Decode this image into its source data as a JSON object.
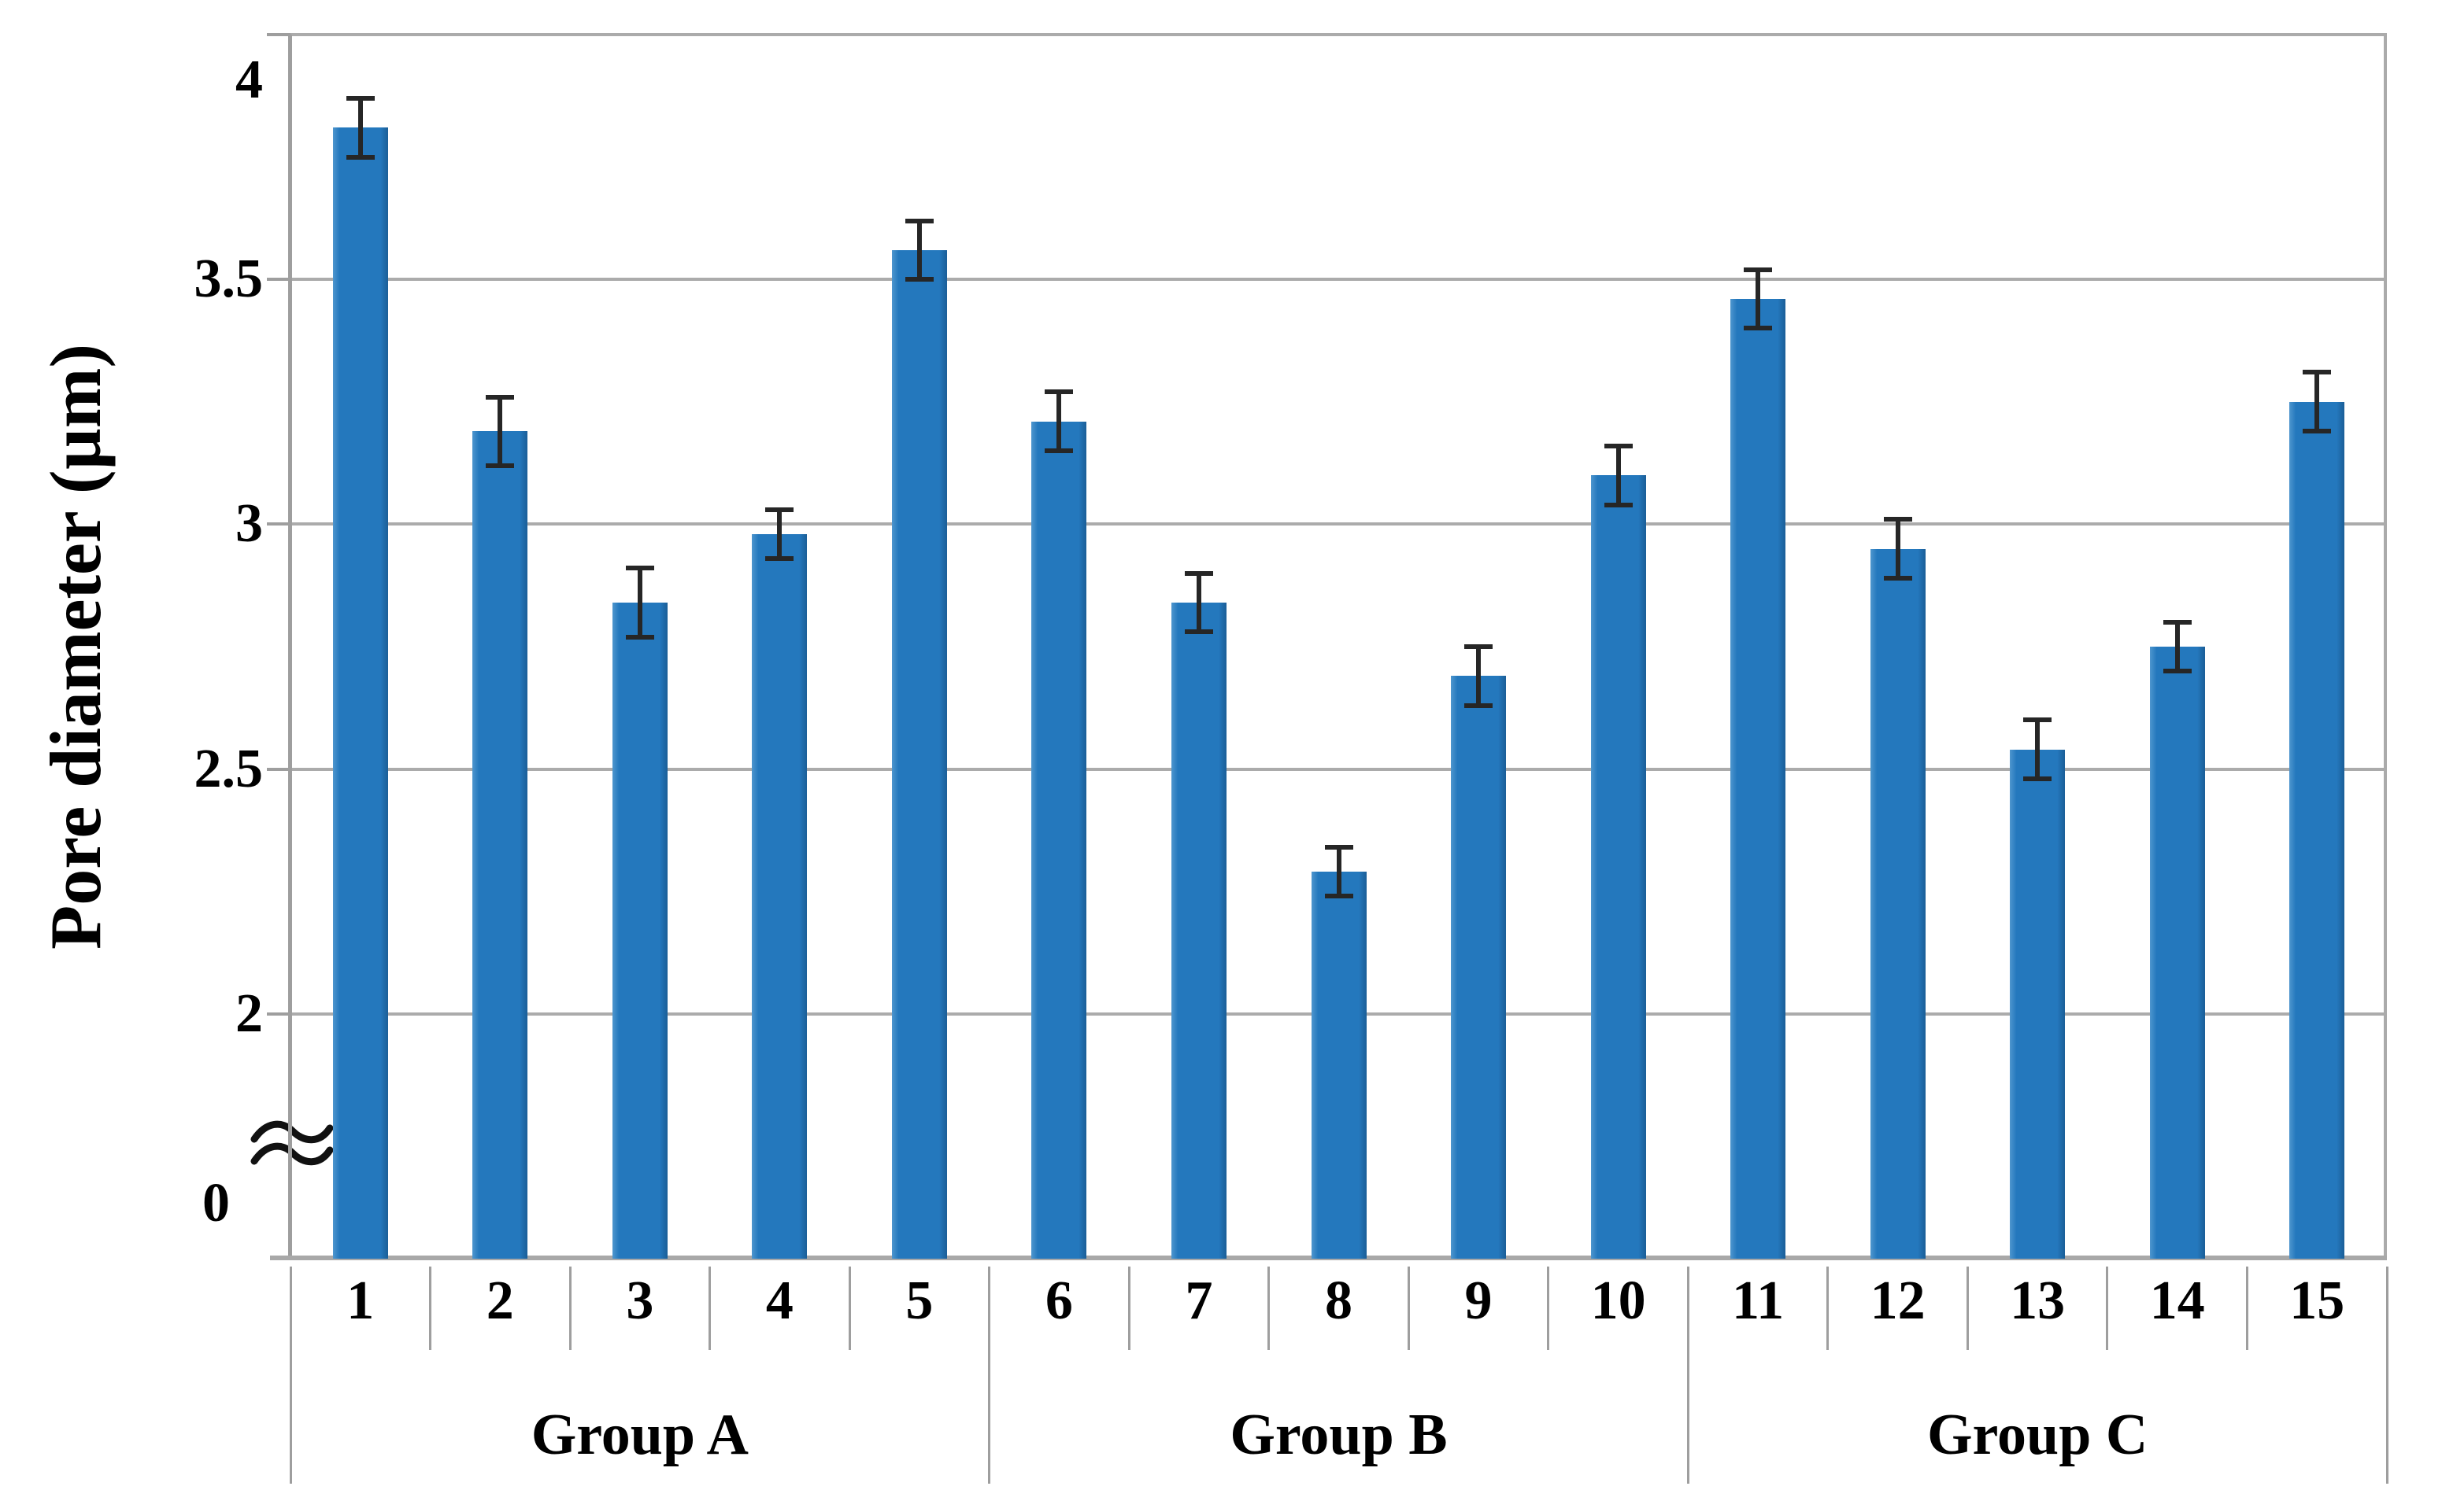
{
  "chart_data": {
    "type": "bar",
    "title": "",
    "xlabel": "",
    "ylabel": "Pore diameter (µm)",
    "categories": [
      "1",
      "2",
      "3",
      "4",
      "5",
      "6",
      "7",
      "8",
      "9",
      "10",
      "11",
      "12",
      "13",
      "14",
      "15"
    ],
    "series": [
      {
        "name": "Pore diameter",
        "values": [
          3.81,
          3.19,
          2.84,
          2.98,
          3.56,
          3.21,
          2.84,
          2.29,
          2.69,
          3.1,
          3.46,
          2.95,
          2.54,
          2.75,
          3.25
        ],
        "errors": [
          0.06,
          0.07,
          0.07,
          0.05,
          0.06,
          0.06,
          0.06,
          0.05,
          0.06,
          0.06,
          0.06,
          0.06,
          0.06,
          0.05,
          0.06
        ]
      }
    ],
    "groups": [
      {
        "label": "Group A",
        "first_category": 1,
        "last_category": 5
      },
      {
        "label": "Group B",
        "first_category": 6,
        "last_category": 10
      },
      {
        "label": "Group C",
        "first_category": 11,
        "last_category": 15
      }
    ],
    "y_axis": {
      "tick_labels": [
        "4",
        "3.5",
        "3",
        "2.5",
        "2"
      ],
      "tick_values": [
        4,
        3.5,
        3,
        2.5,
        2
      ],
      "zero_label": "0",
      "axis_break": true,
      "max": 4.0,
      "display_min": 1.5,
      "gridlines": true
    },
    "legend": null,
    "colors": {
      "bar": "#2478BD",
      "bar_edge_light": "#4E96CE",
      "bar_edge_dark": "#1B5E97",
      "gridline": "#ABABAB",
      "axis_line": "#9E9E9E",
      "baseline": "#A8A8A8",
      "divider": "#9E9E9E",
      "error_bar": "#262626",
      "text": "#000000",
      "background": "#ffffff"
    }
  }
}
